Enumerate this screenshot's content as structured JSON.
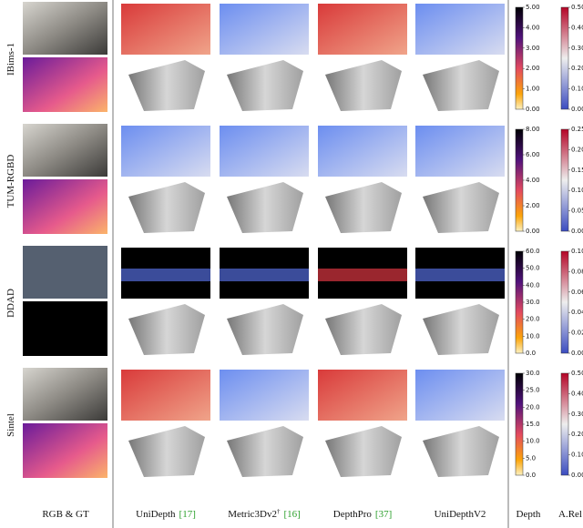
{
  "rows": [
    {
      "label": "IBims-1",
      "depth_ticks": [
        "5.00",
        "4.00",
        "3.00",
        "2.00",
        "1.00",
        "0.00"
      ],
      "arel_ticks": [
        "0.50",
        "0.40",
        "0.30",
        "0.20",
        "0.10",
        "0.00"
      ]
    },
    {
      "label": "TUM-RGBD",
      "depth_ticks": [
        "8.00",
        "6.00",
        "4.00",
        "2.00",
        "0.00"
      ],
      "arel_ticks": [
        "0.25",
        "0.20",
        "0.15",
        "0.10",
        "0.05",
        "0.00"
      ]
    },
    {
      "label": "DDAD",
      "depth_ticks": [
        "60.0",
        "50.0",
        "40.0",
        "30.0",
        "20.0",
        "10.0",
        "0.0"
      ],
      "arel_ticks": [
        "0.10",
        "0.08",
        "0.06",
        "0.04",
        "0.02",
        "0.00"
      ]
    },
    {
      "label": "Sintel",
      "depth_ticks": [
        "30.0",
        "25.0",
        "20.0",
        "15.0",
        "10.0",
        "5.0",
        "0.0"
      ],
      "arel_ticks": [
        "0.50",
        "0.40",
        "0.30",
        "0.20",
        "0.10",
        "0.00"
      ]
    }
  ],
  "columns": [
    {
      "name": "RGB & GT"
    },
    {
      "name": "UniDepth",
      "ref": "[17]"
    },
    {
      "name": "Metric3Dv2",
      "sup": "†",
      "ref": "[16]"
    },
    {
      "name": "DepthPro",
      "ref": "[37]"
    },
    {
      "name": "UniDepthV2"
    },
    {
      "name": "Depth"
    },
    {
      "name": "A.Rel"
    }
  ]
}
